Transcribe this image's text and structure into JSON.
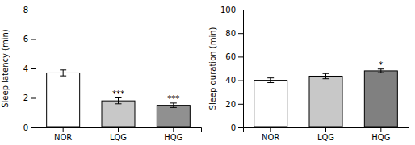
{
  "chart_data": [
    {
      "type": "bar",
      "categories": [
        "NOR",
        "LQG",
        "HQG"
      ],
      "values": [
        3.7,
        1.8,
        1.5
      ],
      "errors": [
        0.2,
        0.2,
        0.15
      ],
      "colors": [
        "#ffffff",
        "#c8c8c8",
        "#909090"
      ],
      "ylabel": "Sleep latency (min)",
      "ylim": [
        0,
        8
      ],
      "yticks": [
        0,
        2,
        4,
        6,
        8
      ],
      "grid": false,
      "annotations": [
        {
          "category": "LQG",
          "text": "***"
        },
        {
          "category": "HQG",
          "text": "***"
        }
      ]
    },
    {
      "type": "bar",
      "categories": [
        "NOR",
        "LQG",
        "HQG"
      ],
      "values": [
        40.0,
        43.5,
        48.0
      ],
      "errors": [
        2.0,
        2.2,
        1.5
      ],
      "colors": [
        "#ffffff",
        "#c8c8c8",
        "#808080"
      ],
      "ylabel": "Sleep duration (min)",
      "ylim": [
        0,
        100
      ],
      "yticks": [
        0,
        20,
        40,
        60,
        80,
        100
      ],
      "grid": false,
      "annotations": [
        {
          "category": "HQG",
          "text": "*"
        }
      ]
    }
  ]
}
